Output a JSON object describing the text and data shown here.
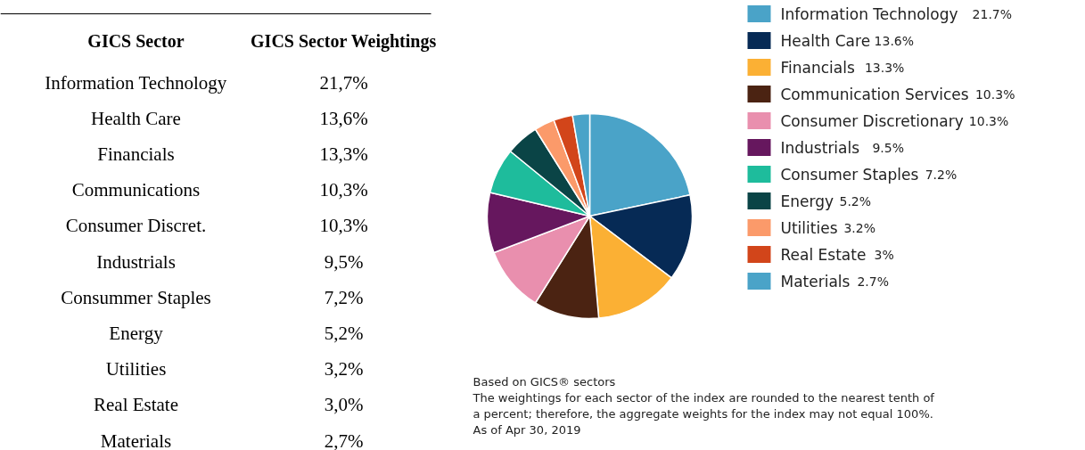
{
  "chart_data": [
    {
      "type": "other",
      "annotations": [
        "GICS Sector",
        "GICS Sector Weightings"
      ],
      "categories": [
        "Information Technology",
        "Health Care",
        "Financials",
        "Communications",
        "Consumer Discret.",
        "Industrials",
        "Consummer Staples",
        "Energy",
        "Utilities",
        "Real Estate",
        "Materials"
      ],
      "value_labels": [
        "21,7%",
        "13,6%",
        "13,3%",
        "10,3%",
        "10,3%",
        "9,5%",
        "7,2%",
        "5,2%",
        "3,2%",
        "3,0%",
        "2,7%"
      ]
    },
    {
      "type": "pie",
      "legend": "right",
      "categories": [
        "Information Technology",
        "Health Care",
        "Financials",
        "Communication Services",
        "Consumer Discretionary",
        "Industrials",
        "Consumer Staples",
        "Energy",
        "Utilities",
        "Real Estate",
        "Materials"
      ],
      "values": [
        21.7,
        13.6,
        13.3,
        10.3,
        10.3,
        9.5,
        7.2,
        5.2,
        3.2,
        3,
        2.7
      ],
      "value_labels": [
        "21.7%",
        "13.6%",
        "13.3%",
        "10.3%",
        "10.3%",
        "9.5%",
        "7.2%",
        "5.2%",
        "3.2%",
        "3%",
        "2.7%"
      ],
      "colors": [
        "#4aa3c8",
        "#062a55",
        "#fbb034",
        "#4b2312",
        "#e98fae",
        "#66175e",
        "#1ebc9c",
        "#0a4446",
        "#fb9a6a",
        "#d2451a",
        "#4aa3c8"
      ],
      "annotations": [
        "Based on GICS® sectors",
        "The weightings for each sector of the index are rounded to the nearest tenth of",
        "a percent; therefore, the aggregate weights for the index may not equal 100%.",
        "As of Apr 30, 2019"
      ]
    }
  ]
}
